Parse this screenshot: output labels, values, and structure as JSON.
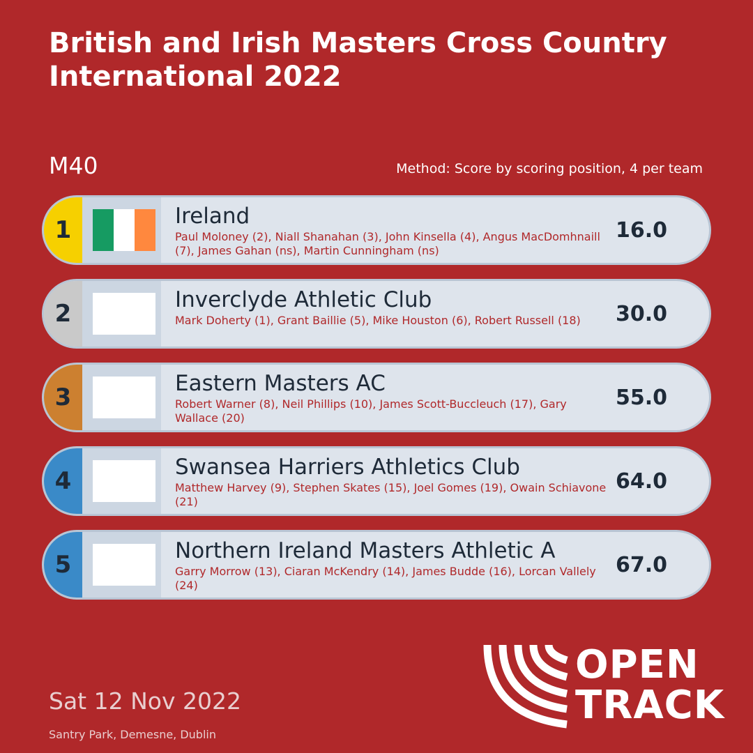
{
  "title": "British and Irish Masters Cross Country International 2022",
  "category": "M40",
  "method": "Method: Score by scoring position, 4 per team",
  "colors": {
    "background": "#b0282a",
    "gold": "#f6d000",
    "silver": "#c9c9c9",
    "bronze": "#cc8030",
    "blue": "#3a8ac8"
  },
  "teams": [
    {
      "rank": "1",
      "name": "Ireland",
      "members": "Paul Moloney (2), Niall Shanahan (3), John Kinsella (4), Angus MacDomhnaill (7), James Gahan (ns), Martin Cunningham (ns)",
      "score": "16.0",
      "flag": "ireland-flag-icon"
    },
    {
      "rank": "2",
      "name": "Inverclyde Athletic Club",
      "members": "Mark Doherty (1), Grant Baillie (5), Mike Houston (6), Robert Russell (18)",
      "score": "30.0",
      "flag": "blank-flag"
    },
    {
      "rank": "3",
      "name": "Eastern Masters AC",
      "members": "Robert Warner (8), Neil Phillips (10), James Scott-Buccleuch (17), Gary Wallace (20)",
      "score": "55.0",
      "flag": "blank-flag"
    },
    {
      "rank": "4",
      "name": "Swansea Harriers Athletics Club",
      "members": "Matthew Harvey (9), Stephen Skates (15), Joel Gomes (19), Owain Schiavone (21)",
      "score": "64.0",
      "flag": "blank-flag"
    },
    {
      "rank": "5",
      "name": "Northern Ireland Masters Athletic A",
      "members": "Garry Morrow (13), Ciaran McKendry (14), James Budde (16), Lorcan Vallely (24)",
      "score": "67.0",
      "flag": "blank-flag"
    }
  ],
  "date": "Sat 12 Nov 2022",
  "venue": "Santry Park, Demesne, Dublin",
  "logo": {
    "line1": "OPEN",
    "line2": "TRACK",
    "icon": "opentrack-logo-icon"
  }
}
